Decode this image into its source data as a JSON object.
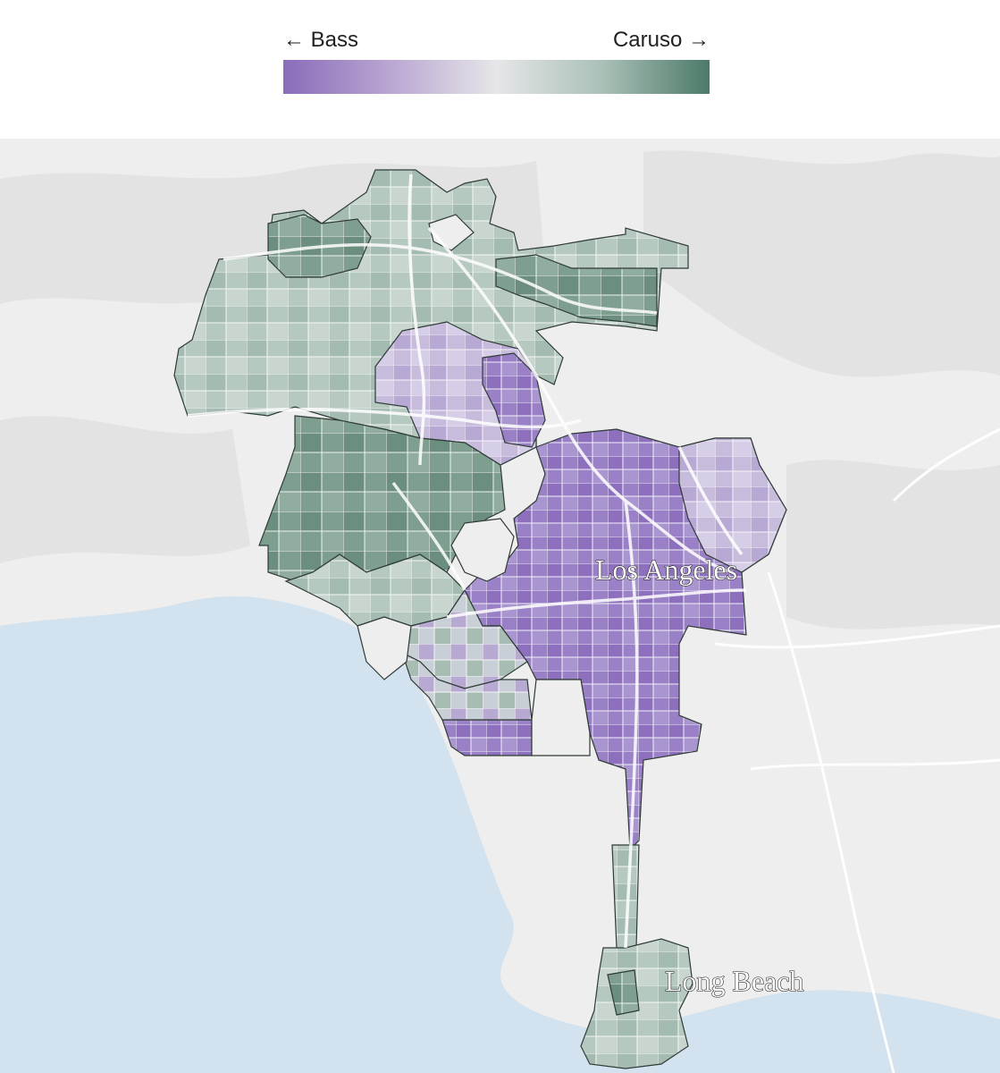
{
  "legend": {
    "left_label": "← Bass",
    "right_label": "Caruso →",
    "colors": {
      "bass_strong": "#8a6cba",
      "neutral": "#e6e6e8",
      "caruso_strong": "#4c7a69"
    }
  },
  "map": {
    "labels": {
      "city_1": "Los Angeles",
      "city_2": "Long Beach"
    },
    "colors": {
      "ocean": "#d2e2ee",
      "land": "#eeeeee",
      "terrain": "#e4e4e4",
      "roads": "#ffffff"
    }
  }
}
